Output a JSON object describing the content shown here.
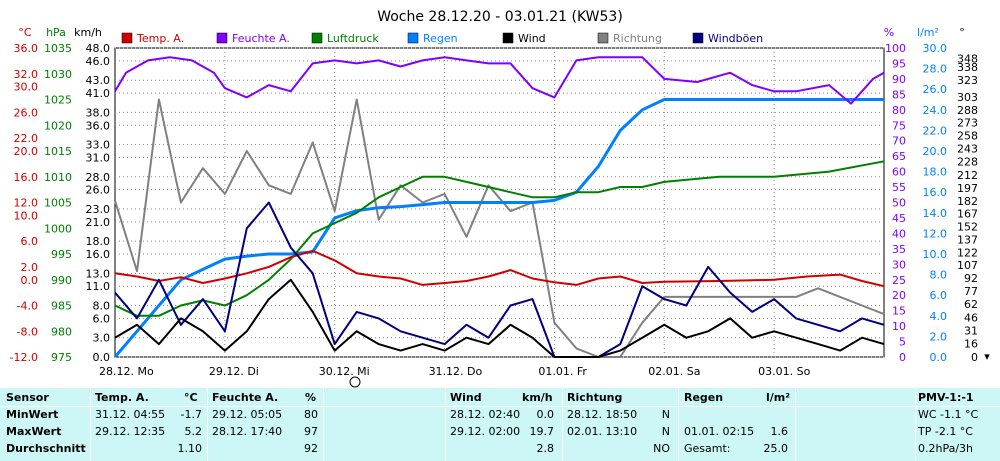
{
  "chart_data": {
    "type": "line",
    "title": "Woche 28.12.20 - 03.01.21 (KW53)",
    "units": {
      "temp": "°C",
      "pressure": "hPa",
      "wind": "km/h",
      "humidity": "%",
      "rain": "l/m²"
    },
    "legend": [
      "Temp. A.",
      "Feuchte A.",
      "Luftdruck",
      "Regen",
      "Wind",
      "Richtung",
      "Windböen"
    ],
    "x_labels": [
      "28.12. Mo",
      "29.12. Di",
      "30.12. Mi",
      "31.12. Do",
      "01.01. Fr",
      "02.01. Sa",
      "03.01. So"
    ],
    "x_range_days": [
      0,
      7
    ],
    "axes": {
      "temp": {
        "ticks": [
          36.0,
          32.0,
          30.0,
          26.0,
          22.0,
          20.0,
          16.0,
          12.0,
          10.0,
          6.0,
          2.0,
          0.0,
          -4.0,
          -8.0,
          -12.0
        ],
        "range": [
          -12,
          36
        ]
      },
      "pressure": {
        "ticks": [
          1035,
          1030,
          1025,
          1020,
          1015,
          1010,
          1005,
          1000,
          995,
          990,
          985,
          980,
          975
        ],
        "range": [
          975,
          1035
        ]
      },
      "wind": {
        "ticks": [
          48.0,
          46.0,
          43.0,
          41.0,
          38.0,
          36.0,
          33.0,
          31.0,
          28.0,
          26.0,
          23.0,
          21.0,
          18.0,
          16.0,
          13.0,
          11.0,
          8.0,
          6.0,
          3.0,
          0.0
        ],
        "range": [
          0,
          48
        ]
      },
      "humidity": {
        "ticks": [
          100,
          95,
          90,
          85,
          80,
          75,
          70,
          65,
          60,
          55,
          50,
          45,
          40,
          35,
          30,
          25,
          20,
          15,
          10,
          5,
          0
        ],
        "range": [
          0,
          100
        ]
      },
      "rain": {
        "ticks": [
          30.0,
          28.0,
          26.0,
          24.0,
          22.0,
          20.0,
          18.0,
          16.0,
          14.0,
          12.0,
          10.0,
          8.0,
          6.0,
          4.0,
          2.0,
          0.0
        ],
        "range": [
          0,
          30
        ]
      },
      "direction": {
        "ticks": [
          348,
          338,
          323,
          303,
          288,
          273,
          258,
          243,
          228,
          212,
          197,
          182,
          167,
          152,
          137,
          122,
          107,
          92,
          77,
          62,
          46,
          31,
          16,
          0
        ],
        "range": [
          0,
          360
        ]
      }
    },
    "series": [
      {
        "name": "Temp. A.",
        "color": "#d00000",
        "axis": "temp",
        "x": [
          0,
          0.2,
          0.4,
          0.6,
          0.8,
          1.0,
          1.2,
          1.4,
          1.6,
          1.8,
          2.0,
          2.2,
          2.4,
          2.6,
          2.8,
          3.0,
          3.2,
          3.4,
          3.6,
          3.8,
          4.0,
          4.2,
          4.4,
          4.6,
          4.8,
          5.0,
          5.5,
          6.0,
          6.3,
          6.6,
          6.8,
          7.0
        ],
        "values": [
          1.0,
          0.5,
          -0.2,
          0.4,
          -0.5,
          0.2,
          1.0,
          2.0,
          3.5,
          4.5,
          3.0,
          1.0,
          0.5,
          0.2,
          -0.8,
          -0.5,
          -0.2,
          0.5,
          1.5,
          0.2,
          -0.4,
          -0.8,
          0.2,
          0.5,
          -0.5,
          -0.3,
          -0.2,
          0.0,
          0.5,
          0.8,
          -0.2,
          -1.0
        ]
      },
      {
        "name": "Feuchte A.",
        "color": "#8000ff",
        "axis": "humidity",
        "x": [
          0,
          0.1,
          0.3,
          0.5,
          0.7,
          0.9,
          1.0,
          1.2,
          1.4,
          1.6,
          1.8,
          2.0,
          2.2,
          2.4,
          2.6,
          2.8,
          3.0,
          3.2,
          3.4,
          3.6,
          3.8,
          4.0,
          4.2,
          4.4,
          4.6,
          4.8,
          5.0,
          5.3,
          5.6,
          5.8,
          6.0,
          6.2,
          6.5,
          6.7,
          6.9,
          7.0
        ],
        "values": [
          86,
          92,
          96,
          97,
          96,
          92,
          87,
          84,
          88,
          86,
          95,
          96,
          95,
          96,
          94,
          96,
          97,
          96,
          95,
          95,
          87,
          84,
          96,
          97,
          97,
          97,
          90,
          89,
          92,
          88,
          86,
          86,
          88,
          82,
          90,
          92
        ]
      },
      {
        "name": "Luftdruck",
        "color": "#008000",
        "axis": "pressure",
        "x": [
          0,
          0.2,
          0.4,
          0.6,
          0.8,
          1.0,
          1.2,
          1.4,
          1.6,
          1.8,
          2.0,
          2.2,
          2.4,
          2.6,
          2.8,
          3.0,
          3.2,
          3.4,
          3.6,
          3.8,
          4.0,
          4.2,
          4.4,
          4.6,
          4.8,
          5.0,
          5.5,
          6.0,
          6.5,
          7.0
        ],
        "values": [
          985,
          983,
          983,
          985,
          986,
          985,
          987,
          990,
          994,
          999,
          1001,
          1003,
          1006,
          1008,
          1010,
          1010,
          1009,
          1008,
          1007,
          1006,
          1006,
          1007,
          1007,
          1008,
          1008,
          1009,
          1010,
          1010,
          1011,
          1013
        ]
      },
      {
        "name": "Regen",
        "color": "#0080ff",
        "axis": "rain",
        "x": [
          0,
          0.2,
          0.4,
          0.6,
          0.8,
          1.0,
          1.2,
          1.4,
          1.6,
          1.8,
          2.0,
          2.2,
          2.4,
          2.6,
          2.8,
          3.0,
          3.2,
          3.4,
          3.6,
          3.8,
          4.0,
          4.2,
          4.4,
          4.6,
          4.8,
          5.0,
          5.5,
          6.0,
          6.5,
          7.0
        ],
        "values": [
          0,
          2.5,
          5.0,
          7.5,
          8.5,
          9.5,
          9.8,
          10.0,
          10.0,
          10.2,
          13.5,
          14.2,
          14.5,
          14.6,
          14.8,
          15.0,
          15.0,
          15.0,
          15.0,
          15.0,
          15.2,
          16.0,
          18.5,
          22.0,
          24.0,
          25.0,
          25.0,
          25.0,
          25.0,
          25.0
        ]
      },
      {
        "name": "Wind",
        "color": "#000000",
        "axis": "wind",
        "x": [
          0,
          0.2,
          0.4,
          0.6,
          0.8,
          1.0,
          1.2,
          1.4,
          1.6,
          1.8,
          2.0,
          2.2,
          2.4,
          2.6,
          2.8,
          3.0,
          3.2,
          3.4,
          3.6,
          3.8,
          4.0,
          4.2,
          4.4,
          4.6,
          4.8,
          5.0,
          5.2,
          5.4,
          5.6,
          5.8,
          6.0,
          6.2,
          6.4,
          6.6,
          6.8,
          7.0
        ],
        "values": [
          3,
          5,
          2,
          6,
          4,
          1,
          4,
          9,
          12,
          7,
          1,
          4,
          2,
          1,
          2,
          1,
          3,
          2,
          5,
          3,
          0,
          0,
          0,
          1,
          3,
          5,
          3,
          4,
          6,
          3,
          4,
          3,
          2,
          1,
          3,
          2
        ]
      },
      {
        "name": "Richtung",
        "color": "#808080",
        "axis": "direction",
        "x": [
          0,
          0.2,
          0.4,
          0.6,
          0.8,
          1.0,
          1.2,
          1.4,
          1.6,
          1.8,
          2.0,
          2.2,
          2.4,
          2.6,
          2.8,
          3.0,
          3.2,
          3.4,
          3.6,
          3.8,
          4.0,
          4.2,
          4.4,
          4.6,
          4.8,
          5.0,
          5.2,
          5.4,
          5.6,
          5.8,
          6.0,
          6.2,
          6.4,
          6.6,
          6.8,
          7.0
        ],
        "values": [
          182,
          100,
          300,
          180,
          220,
          190,
          240,
          200,
          190,
          250,
          170,
          300,
          160,
          200,
          180,
          190,
          140,
          200,
          170,
          180,
          40,
          10,
          0,
          0,
          40,
          70,
          70,
          70,
          70,
          70,
          70,
          70,
          80,
          70,
          60,
          50
        ]
      },
      {
        "name": "Windböen",
        "color": "#000080",
        "axis": "wind",
        "x": [
          0,
          0.2,
          0.4,
          0.6,
          0.8,
          1.0,
          1.2,
          1.4,
          1.6,
          1.8,
          2.0,
          2.2,
          2.4,
          2.6,
          2.8,
          3.0,
          3.2,
          3.4,
          3.6,
          3.8,
          4.0,
          4.2,
          4.4,
          4.6,
          4.8,
          5.0,
          5.2,
          5.4,
          5.6,
          5.8,
          6.0,
          6.2,
          6.4,
          6.6,
          6.8,
          7.0
        ],
        "values": [
          10,
          6,
          12,
          5,
          9,
          4,
          20,
          24,
          17,
          13,
          2,
          7,
          6,
          4,
          3,
          2,
          5,
          3,
          8,
          9,
          0,
          0,
          0,
          2,
          11,
          9,
          8,
          14,
          10,
          7,
          9,
          6,
          5,
          4,
          6,
          5
        ]
      }
    ]
  },
  "stats": {
    "col_sensor": {
      "header": "Sensor",
      "rows": [
        "MinWert",
        "MaxWert",
        "Durchschnitt"
      ]
    },
    "col_temp": {
      "header": "Temp. A.",
      "unit": "°C",
      "times": [
        "31.12.  04:55",
        "29.12.  12:35",
        ""
      ],
      "values": [
        "-1.7",
        "5.2",
        "1.10"
      ]
    },
    "col_hum": {
      "header": "Feuchte A.",
      "unit": "%",
      "times": [
        "29.12.  05:05",
        "28.12.  17:40",
        ""
      ],
      "values": [
        "80",
        "97",
        "92"
      ]
    },
    "col_wind": {
      "header": "Wind",
      "unit": "km/h",
      "times": [
        "28.12.  02:40",
        "29.12.  02:00",
        ""
      ],
      "values": [
        "0.0",
        "19.7",
        "2.8"
      ]
    },
    "col_dir": {
      "header": "Richtung",
      "times": [
        "28.12.  18:50",
        "02.01.  13:10",
        ""
      ],
      "values": [
        "N",
        "N",
        "NO"
      ]
    },
    "col_rain": {
      "header": "Regen",
      "unit": "l/m²",
      "times": [
        "",
        "01.01.  02:15",
        "Gesamt:"
      ],
      "values": [
        "",
        "1.6",
        "25.0"
      ]
    },
    "col_pmv": {
      "header": "PMV-1:-1",
      "rows": [
        "WC -1.1 °C",
        "TP -2.1 °C",
        "0.2hPa/3h"
      ]
    }
  }
}
